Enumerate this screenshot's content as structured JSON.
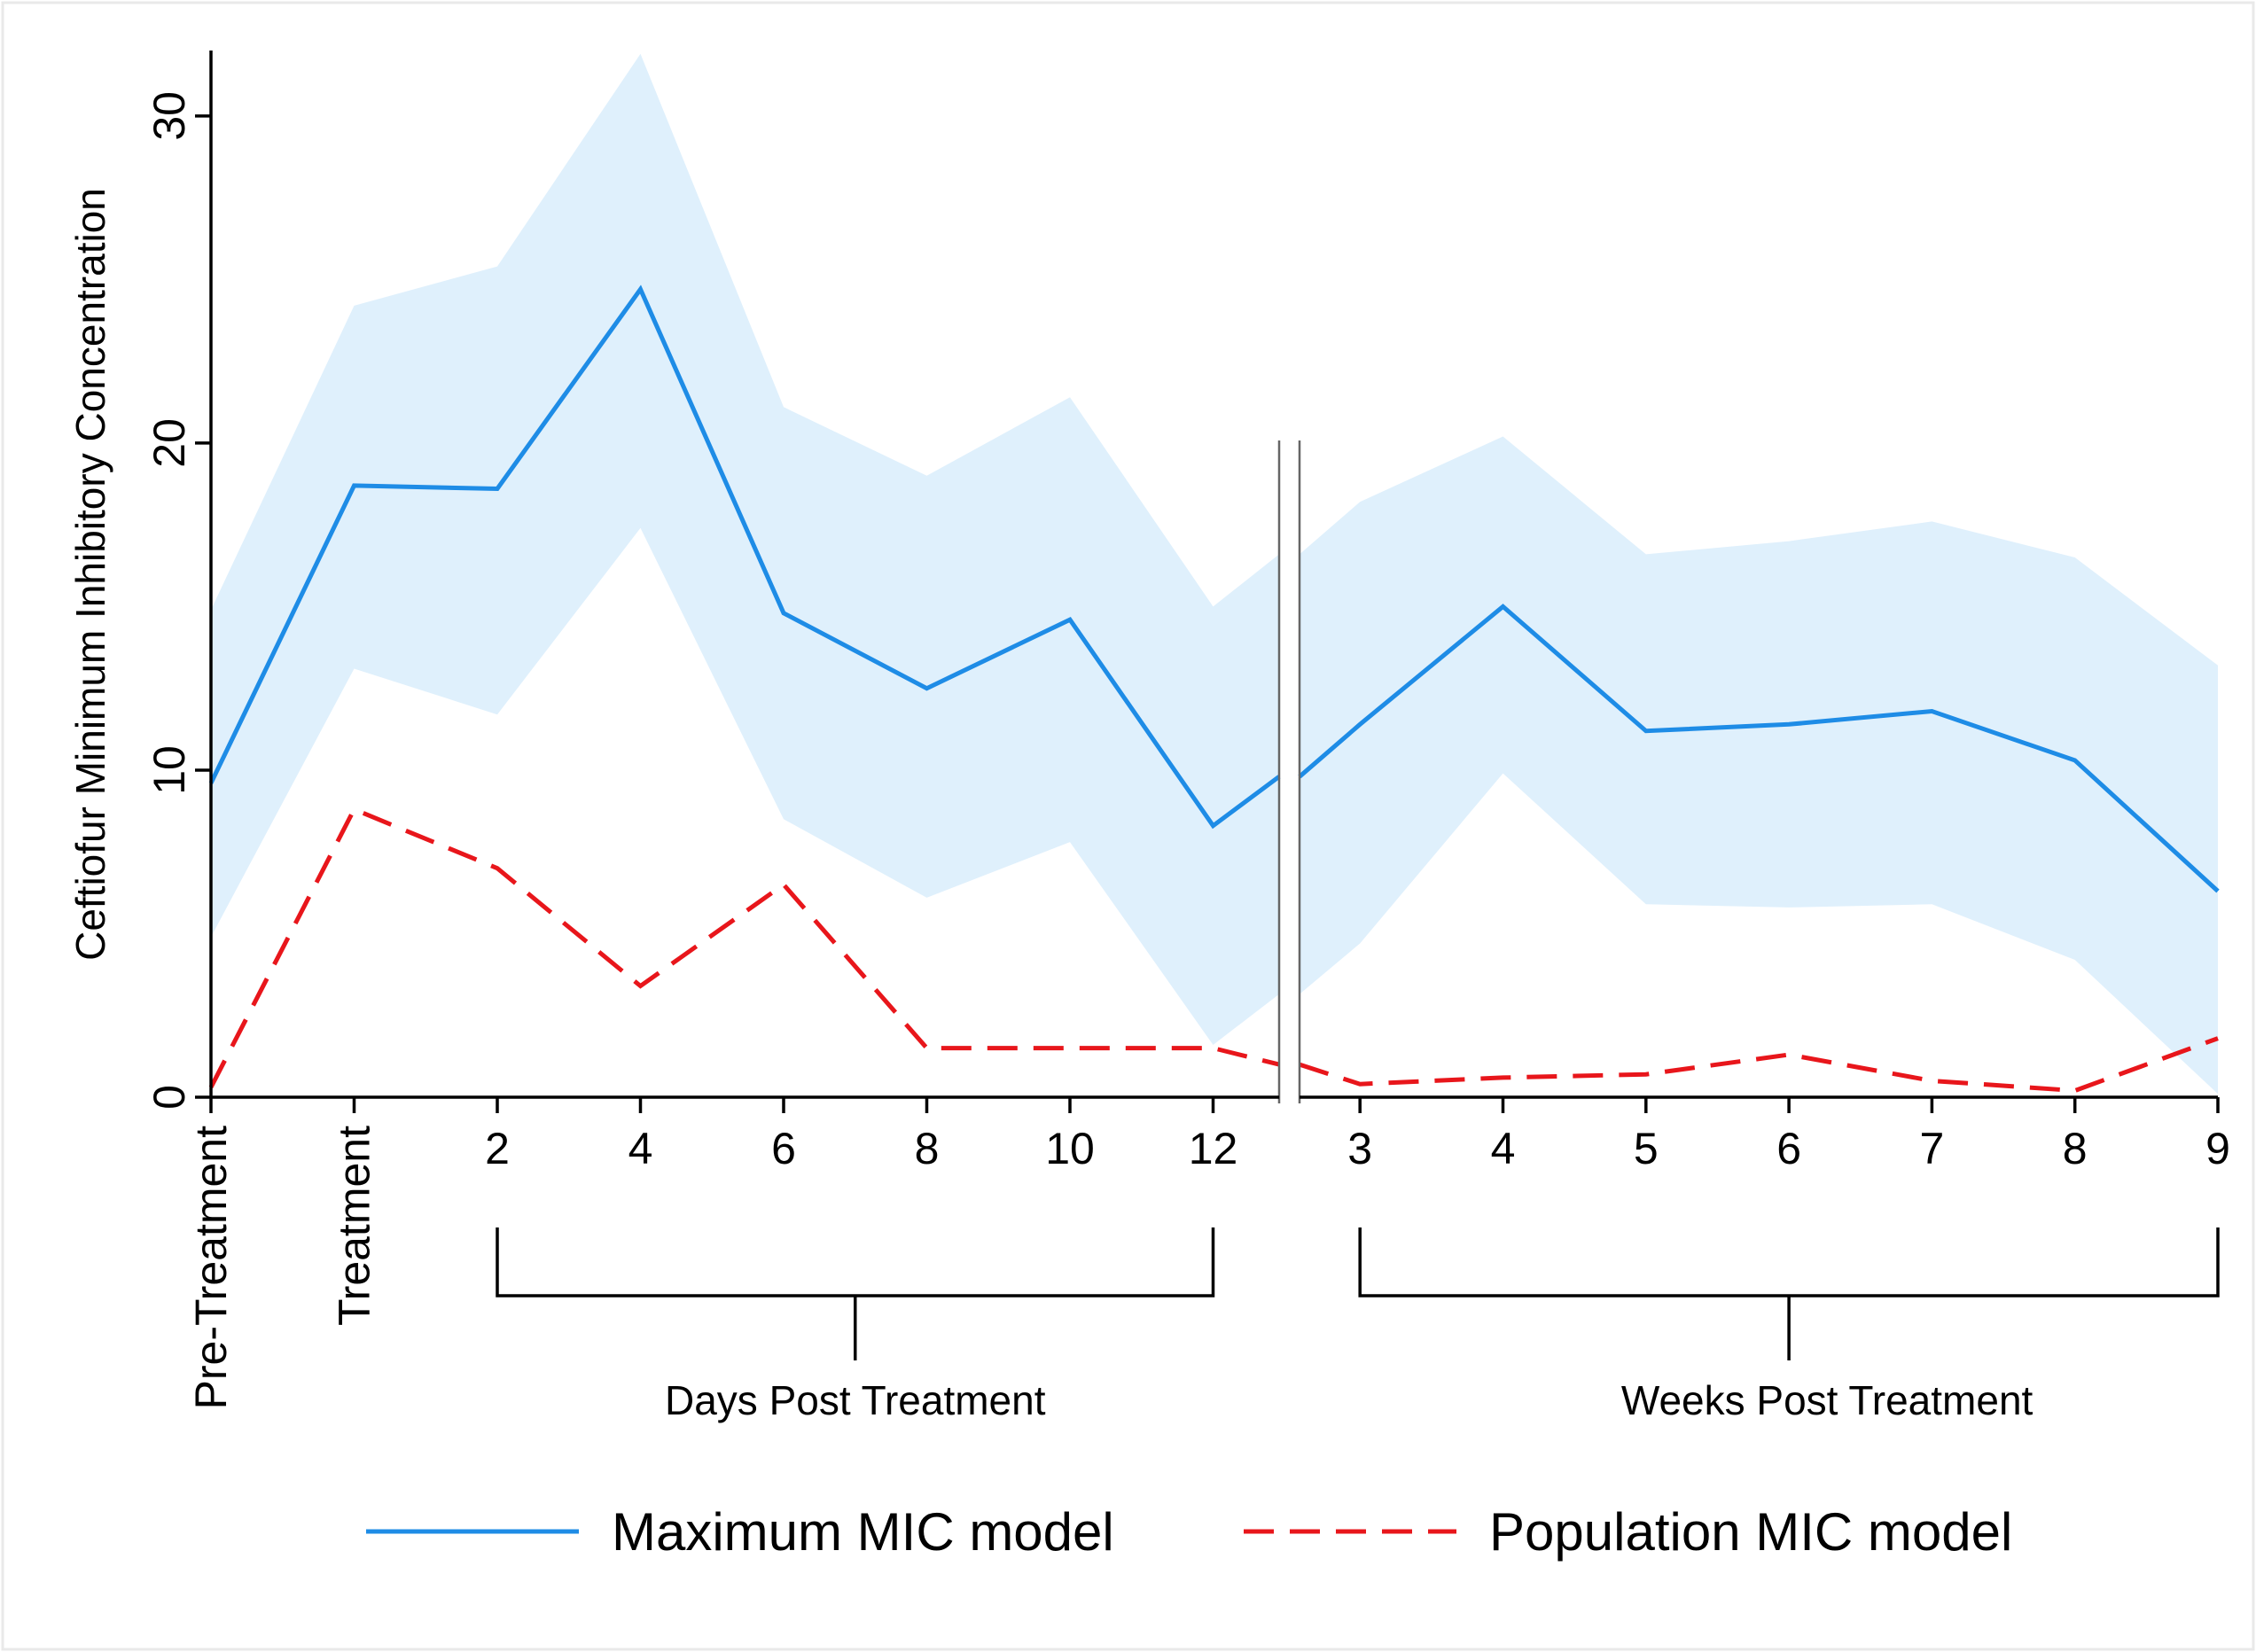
{
  "chart_data": {
    "type": "line",
    "title": "",
    "xlabel": "",
    "ylabel": "Ceftiofur Minimum Inhibitory Concentration",
    "ylim": [
      0,
      32
    ],
    "yticks": [
      0,
      10,
      20,
      30
    ],
    "ytick_labels": [
      "0",
      "10",
      "20",
      "30"
    ],
    "grid": false,
    "categories": [
      "Pre-Treatment",
      "Treatment",
      "2",
      "4",
      "6",
      "8",
      "10",
      "12",
      "3",
      "4",
      "5",
      "6",
      "7",
      "8",
      "9"
    ],
    "groups": [
      {
        "label": "Days Post Treatment",
        "from_index": 2,
        "to_index": 7
      },
      {
        "label": "Weeks Post Treatment",
        "from_index": 8,
        "to_index": 14
      }
    ],
    "axis_break_between": [
      7,
      8
    ],
    "series": [
      {
        "name": "Maximum MIC model",
        "style": "solid",
        "color": "#1e8ce6",
        "values": [
          9.6,
          18.7,
          18.6,
          24.7,
          14.8,
          12.5,
          14.6,
          8.3,
          11.4,
          15.0,
          11.2,
          11.4,
          11.8,
          10.3,
          6.3
        ],
        "break_point_value": 9.8,
        "ci_upper": [
          14.9,
          24.2,
          25.4,
          31.9,
          21.1,
          19.0,
          21.4,
          15.0,
          18.2,
          20.2,
          16.6,
          17.0,
          17.6,
          16.5,
          13.2
        ],
        "ci_lower": [
          4.9,
          13.1,
          11.7,
          17.4,
          8.5,
          6.1,
          7.8,
          1.6,
          4.7,
          9.9,
          5.9,
          5.8,
          5.9,
          4.2,
          0.1
        ],
        "ci_color": "#dff0fc"
      },
      {
        "name": "Population MIC model",
        "style": "dashed",
        "color": "#e8161b",
        "values": [
          0.3,
          8.8,
          7.0,
          3.4,
          6.5,
          1.5,
          1.5,
          1.5,
          0.4,
          0.6,
          0.7,
          1.3,
          0.5,
          0.2,
          1.8
        ],
        "break_point_value": 1.0
      }
    ],
    "legend_position": "bottom"
  }
}
